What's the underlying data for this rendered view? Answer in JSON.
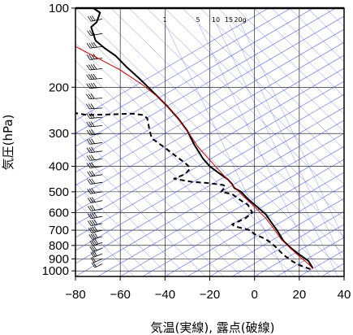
{
  "chart_data": {
    "type": "line",
    "xlabel": "気温(実線), 露点(破線)",
    "ylabel": "気圧(hPa)",
    "x_range": [
      -80,
      40
    ],
    "p_range": [
      100,
      1050
    ],
    "y_scale": "log",
    "x_ticks": [
      -80,
      -60,
      -40,
      -20,
      0,
      20,
      40
    ],
    "p_ticks": [
      100,
      200,
      300,
      400,
      500,
      600,
      700,
      800,
      900,
      1000
    ],
    "grid": true,
    "mixing_ratio_labels": [
      "1",
      "5",
      "10",
      "15",
      "20g"
    ],
    "series": [
      {
        "name": "",
        "role": "temperature",
        "style": "solid",
        "color": "#000000",
        "points": [
          [
            -72,
            100
          ],
          [
            -69,
            104
          ],
          [
            -70.5,
            113
          ],
          [
            -73,
            118
          ],
          [
            -71,
            133
          ],
          [
            -67,
            142
          ],
          [
            -62,
            152
          ],
          [
            -57,
            168
          ],
          [
            -51,
            187
          ],
          [
            -45,
            210
          ],
          [
            -39,
            236
          ],
          [
            -34,
            264
          ],
          [
            -30,
            293
          ],
          [
            -27,
            330
          ],
          [
            -23,
            374
          ],
          [
            -20,
            400
          ],
          [
            -16,
            424
          ],
          [
            -12,
            448
          ],
          [
            -10,
            468
          ],
          [
            -9,
            484
          ],
          [
            -6,
            500
          ],
          [
            -3,
            532
          ],
          [
            1,
            569
          ],
          [
            5,
            609
          ],
          [
            7,
            645
          ],
          [
            10,
            700
          ],
          [
            13,
            770
          ],
          [
            16,
            815
          ],
          [
            20,
            866
          ],
          [
            24,
            915
          ],
          [
            26,
            975
          ]
        ]
      },
      {
        "name": "",
        "role": "dewpoint",
        "style": "dashed",
        "color": "#000000",
        "points": [
          [
            -81,
            250
          ],
          [
            -75,
            255
          ],
          [
            -65,
            254
          ],
          [
            -55,
            252
          ],
          [
            -50,
            255
          ],
          [
            -48,
            262
          ],
          [
            -47,
            288
          ],
          [
            -46,
            313
          ],
          [
            -40,
            340
          ],
          [
            -34,
            372
          ],
          [
            -31,
            389
          ],
          [
            -29,
            403
          ],
          [
            -29,
            410
          ],
          [
            -31,
            428
          ],
          [
            -36,
            446
          ],
          [
            -28,
            458
          ],
          [
            -21,
            463
          ],
          [
            -14,
            471
          ],
          [
            -13,
            478
          ],
          [
            -15,
            500
          ],
          [
            -10,
            510
          ],
          [
            -6,
            540
          ],
          [
            -3,
            560
          ],
          [
            -1,
            600
          ],
          [
            -4,
            630
          ],
          [
            -10,
            665
          ],
          [
            -9,
            676
          ],
          [
            -2,
            700
          ],
          [
            0,
            725
          ],
          [
            5,
            757
          ],
          [
            8,
            790
          ],
          [
            10,
            820
          ],
          [
            13,
            870
          ],
          [
            17,
            920
          ],
          [
            20,
            950
          ],
          [
            25,
            985
          ]
        ]
      },
      {
        "name": "",
        "role": "parcel",
        "style": "solid",
        "color": "#d00000",
        "points": [
          [
            -80,
            140
          ],
          [
            -70,
            155
          ],
          [
            -60,
            172
          ],
          [
            -50,
            196
          ],
          [
            -42,
            222
          ],
          [
            -36,
            252
          ],
          [
            -30,
            293
          ],
          [
            -25,
            340
          ],
          [
            -18,
            395
          ],
          [
            -10,
            470
          ],
          [
            -5,
            520
          ],
          [
            0,
            570
          ],
          [
            5,
            630
          ],
          [
            8,
            680
          ],
          [
            12,
            760
          ],
          [
            16,
            820
          ],
          [
            20,
            880
          ],
          [
            24,
            940
          ],
          [
            26,
            980
          ]
        ]
      }
    ],
    "wind_barbs": [
      {
        "p": 110,
        "dir": 240,
        "spd": 25
      },
      {
        "p": 125,
        "dir": 245,
        "spd": 30
      },
      {
        "p": 140,
        "dir": 250,
        "spd": 35
      },
      {
        "p": 155,
        "dir": 250,
        "spd": 35
      },
      {
        "p": 170,
        "dir": 255,
        "spd": 35
      },
      {
        "p": 185,
        "dir": 255,
        "spd": 35
      },
      {
        "p": 200,
        "dir": 255,
        "spd": 35
      },
      {
        "p": 220,
        "dir": 260,
        "spd": 30
      },
      {
        "p": 240,
        "dir": 260,
        "spd": 30
      },
      {
        "p": 260,
        "dir": 255,
        "spd": 30
      },
      {
        "p": 280,
        "dir": 255,
        "spd": 25
      },
      {
        "p": 300,
        "dir": 250,
        "spd": 25
      },
      {
        "p": 325,
        "dir": 250,
        "spd": 25
      },
      {
        "p": 350,
        "dir": 250,
        "spd": 25
      },
      {
        "p": 375,
        "dir": 250,
        "spd": 30
      },
      {
        "p": 400,
        "dir": 250,
        "spd": 30
      },
      {
        "p": 430,
        "dir": 245,
        "spd": 25
      },
      {
        "p": 460,
        "dir": 245,
        "spd": 25
      },
      {
        "p": 500,
        "dir": 245,
        "spd": 25
      },
      {
        "p": 540,
        "dir": 240,
        "spd": 30
      },
      {
        "p": 580,
        "dir": 240,
        "spd": 30
      },
      {
        "p": 620,
        "dir": 240,
        "spd": 35
      },
      {
        "p": 660,
        "dir": 240,
        "spd": 35
      },
      {
        "p": 700,
        "dir": 235,
        "spd": 35
      },
      {
        "p": 740,
        "dir": 230,
        "spd": 35
      },
      {
        "p": 780,
        "dir": 225,
        "spd": 35
      },
      {
        "p": 820,
        "dir": 225,
        "spd": 30
      },
      {
        "p": 860,
        "dir": 220,
        "spd": 25
      },
      {
        "p": 900,
        "dir": 220,
        "spd": 20
      },
      {
        "p": 940,
        "dir": 215,
        "spd": 15
      }
    ],
    "colors": {
      "frame": "#000000",
      "grid": "#000000",
      "isotherm": "#3b4fe0",
      "mixing_ratio": "#3b4fe0",
      "parcel": "#d00000"
    }
  }
}
